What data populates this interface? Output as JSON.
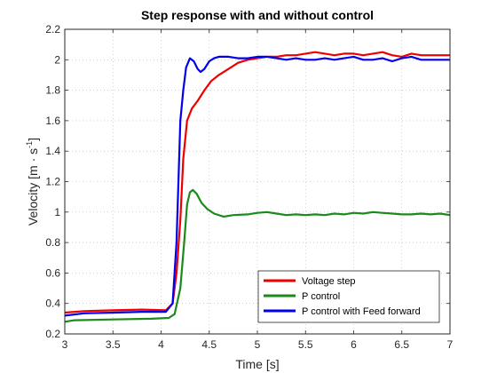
{
  "chart_data": {
    "type": "line",
    "title": "Step response with and without control",
    "xlabel": "Time [s]",
    "ylabel": {
      "base": "Velocity [m · s",
      "sup": "-1",
      "end": "]"
    },
    "xlim": [
      3,
      7
    ],
    "ylim": [
      0.2,
      2.2
    ],
    "xticks": [
      3,
      3.5,
      4,
      4.5,
      5,
      5.5,
      6,
      6.5,
      7
    ],
    "xtick_labels": [
      "3",
      "3.5",
      "4",
      "4.5",
      "5",
      "5.5",
      "6",
      "6.5",
      "7"
    ],
    "yticks": [
      0.2,
      0.4,
      0.6,
      0.8,
      1,
      1.2,
      1.4,
      1.6,
      1.8,
      2,
      2.2
    ],
    "ytick_labels": [
      "0.2",
      "0.4",
      "0.6",
      "0.8",
      "1",
      "1.2",
      "1.4",
      "1.6",
      "1.8",
      "2",
      "2.2"
    ],
    "grid": true,
    "legend_position": "bottom-right",
    "series": [
      {
        "name": "Voltage step",
        "color": "#ee0000",
        "points": [
          [
            3,
            0.34
          ],
          [
            3.2,
            0.35
          ],
          [
            3.5,
            0.355
          ],
          [
            3.8,
            0.36
          ],
          [
            4.05,
            0.355
          ],
          [
            4.12,
            0.4
          ],
          [
            4.16,
            0.6
          ],
          [
            4.2,
            0.95
          ],
          [
            4.23,
            1.35
          ],
          [
            4.27,
            1.6
          ],
          [
            4.32,
            1.68
          ],
          [
            4.38,
            1.73
          ],
          [
            4.45,
            1.8
          ],
          [
            4.52,
            1.86
          ],
          [
            4.6,
            1.9
          ],
          [
            4.7,
            1.94
          ],
          [
            4.8,
            1.98
          ],
          [
            4.9,
            2.0
          ],
          [
            5.0,
            2.01
          ],
          [
            5.1,
            2.02
          ],
          [
            5.2,
            2.02
          ],
          [
            5.3,
            2.03
          ],
          [
            5.4,
            2.03
          ],
          [
            5.5,
            2.04
          ],
          [
            5.6,
            2.05
          ],
          [
            5.7,
            2.04
          ],
          [
            5.8,
            2.03
          ],
          [
            5.9,
            2.04
          ],
          [
            6.0,
            2.04
          ],
          [
            6.1,
            2.03
          ],
          [
            6.2,
            2.04
          ],
          [
            6.3,
            2.05
          ],
          [
            6.4,
            2.03
          ],
          [
            6.5,
            2.02
          ],
          [
            6.6,
            2.04
          ],
          [
            6.7,
            2.03
          ],
          [
            6.8,
            2.03
          ],
          [
            6.9,
            2.03
          ],
          [
            7.0,
            2.03
          ]
        ]
      },
      {
        "name": "P control",
        "color": "#1a8a1a",
        "points": [
          [
            3,
            0.28
          ],
          [
            3.1,
            0.29
          ],
          [
            3.5,
            0.295
          ],
          [
            3.9,
            0.3
          ],
          [
            4.08,
            0.305
          ],
          [
            4.14,
            0.33
          ],
          [
            4.2,
            0.5
          ],
          [
            4.24,
            0.8
          ],
          [
            4.27,
            1.05
          ],
          [
            4.3,
            1.13
          ],
          [
            4.33,
            1.145
          ],
          [
            4.37,
            1.12
          ],
          [
            4.42,
            1.06
          ],
          [
            4.48,
            1.02
          ],
          [
            4.55,
            0.99
          ],
          [
            4.65,
            0.97
          ],
          [
            4.75,
            0.98
          ],
          [
            4.9,
            0.985
          ],
          [
            5.0,
            0.995
          ],
          [
            5.1,
            1.0
          ],
          [
            5.2,
            0.99
          ],
          [
            5.3,
            0.98
          ],
          [
            5.4,
            0.985
          ],
          [
            5.5,
            0.98
          ],
          [
            5.6,
            0.985
          ],
          [
            5.7,
            0.98
          ],
          [
            5.8,
            0.99
          ],
          [
            5.9,
            0.985
          ],
          [
            6.0,
            0.995
          ],
          [
            6.1,
            0.99
          ],
          [
            6.2,
            1.0
          ],
          [
            6.3,
            0.995
          ],
          [
            6.4,
            0.99
          ],
          [
            6.5,
            0.985
          ],
          [
            6.6,
            0.985
          ],
          [
            6.7,
            0.99
          ],
          [
            6.8,
            0.985
          ],
          [
            6.9,
            0.99
          ],
          [
            7.0,
            0.98
          ]
        ]
      },
      {
        "name": "P control with Feed forward",
        "color": "#0000ee",
        "points": [
          [
            3,
            0.32
          ],
          [
            3.2,
            0.335
          ],
          [
            3.5,
            0.34
          ],
          [
            3.8,
            0.345
          ],
          [
            4.05,
            0.345
          ],
          [
            4.12,
            0.4
          ],
          [
            4.16,
            0.8
          ],
          [
            4.2,
            1.6
          ],
          [
            4.23,
            1.8
          ],
          [
            4.26,
            1.95
          ],
          [
            4.3,
            2.01
          ],
          [
            4.34,
            1.99
          ],
          [
            4.38,
            1.94
          ],
          [
            4.41,
            1.92
          ],
          [
            4.45,
            1.94
          ],
          [
            4.5,
            1.99
          ],
          [
            4.55,
            2.01
          ],
          [
            4.6,
            2.02
          ],
          [
            4.7,
            2.02
          ],
          [
            4.8,
            2.01
          ],
          [
            4.9,
            2.01
          ],
          [
            5.0,
            2.02
          ],
          [
            5.1,
            2.02
          ],
          [
            5.2,
            2.01
          ],
          [
            5.3,
            2.0
          ],
          [
            5.4,
            2.01
          ],
          [
            5.5,
            2.0
          ],
          [
            5.6,
            2.0
          ],
          [
            5.7,
            2.01
          ],
          [
            5.8,
            2.0
          ],
          [
            5.9,
            2.01
          ],
          [
            6.0,
            2.02
          ],
          [
            6.1,
            2.0
          ],
          [
            6.2,
            2.0
          ],
          [
            6.3,
            2.01
          ],
          [
            6.4,
            1.99
          ],
          [
            6.5,
            2.01
          ],
          [
            6.6,
            2.02
          ],
          [
            6.7,
            2.0
          ],
          [
            6.8,
            2.0
          ],
          [
            6.9,
            2.0
          ],
          [
            7.0,
            2.0
          ]
        ]
      }
    ]
  }
}
